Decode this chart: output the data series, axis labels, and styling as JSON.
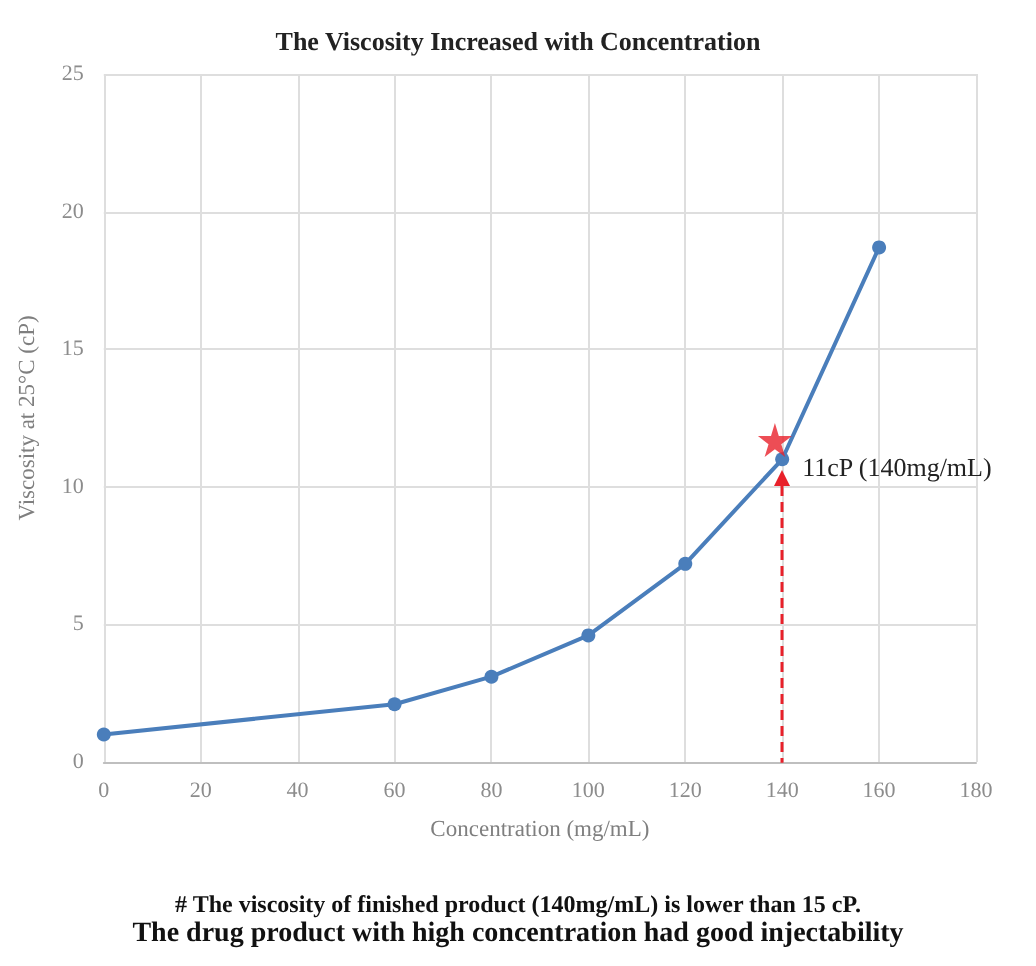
{
  "chart_data": {
    "type": "line",
    "title": "The Viscosity Increased with Concentration",
    "xlabel": "Concentration (mg/mL)",
    "ylabel": "Viscosity at 25°C (cP)",
    "x": [
      0,
      60,
      80,
      100,
      120,
      140,
      160
    ],
    "series": [
      {
        "color": "#4a7ebb",
        "values": [
          1.0,
          2.1,
          3.1,
          4.6,
          7.2,
          11,
          18.7
        ]
      },
      {
        "type": "scatter",
        "x": [
          138.5
        ],
        "values": [
          11.7
        ],
        "color": "#e8202a",
        "marker": "star"
      }
    ],
    "xlim": [
      0,
      180
    ],
    "xticks": [
      0,
      20,
      40,
      60,
      80,
      100,
      120,
      140,
      160,
      180
    ],
    "ylim": [
      0,
      25
    ],
    "yticks": [
      0,
      5,
      10,
      15,
      20,
      25
    ],
    "grid": true,
    "marker": "circle",
    "line_style": "solid",
    "annotations": [
      {
        "text": "11cP (140mg/mL)",
        "x": 140,
        "y": 11
      },
      "# The viscosity of finished product (140mg/mL) is lower than 15 cP.",
      "The drug product with high concentration had good injectability"
    ]
  }
}
